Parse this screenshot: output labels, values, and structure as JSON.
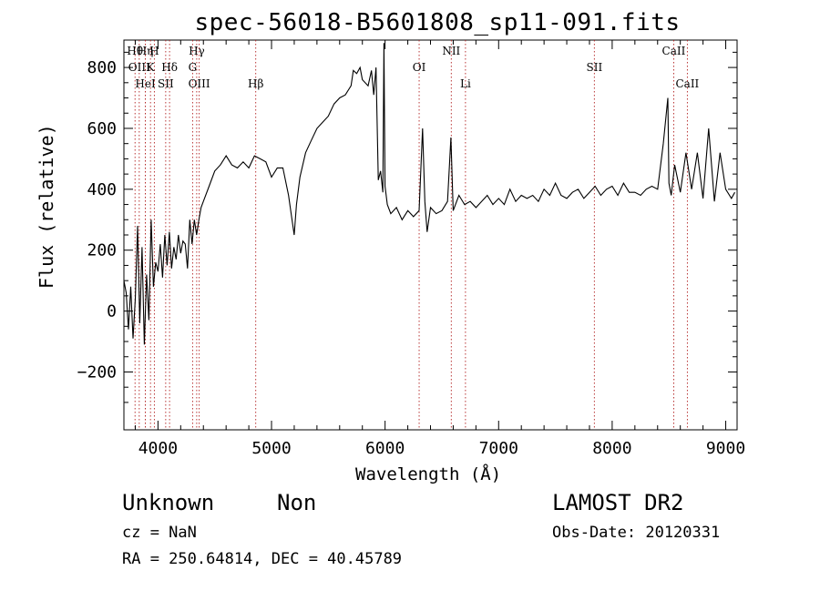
{
  "chart_data": {
    "type": "line",
    "title": "spec-56018-B5601808_sp11-091.fits",
    "xlabel": "Wavelength (Å)",
    "ylabel": "Flux (relative)",
    "xlim": [
      3700,
      9100
    ],
    "ylim": [
      -390,
      890
    ],
    "x_ticks": [
      4000,
      5000,
      6000,
      7000,
      8000,
      9000
    ],
    "y_ticks": [
      -200,
      0,
      200,
      400,
      600,
      800
    ],
    "grid": false,
    "series": [
      {
        "x": [
          3700,
          3720,
          3740,
          3760,
          3780,
          3800,
          3820,
          3840,
          3860,
          3880,
          3900,
          3920,
          3940,
          3960,
          3980,
          4000,
          4020,
          4040,
          4060,
          4080,
          4100,
          4120,
          4140,
          4160,
          4180,
          4200,
          4220,
          4240,
          4260,
          4280,
          4300,
          4320,
          4340,
          4360,
          4380,
          4400,
          4450,
          4500,
          4550,
          4600,
          4650,
          4700,
          4750,
          4800,
          4850,
          4900,
          4950,
          5000,
          5050,
          5100,
          5150,
          5180,
          5200,
          5220,
          5250,
          5300,
          5350,
          5400,
          5450,
          5500,
          5550,
          5600,
          5650,
          5700,
          5720,
          5750,
          5780,
          5800,
          5850,
          5880,
          5900,
          5920,
          5940,
          5960,
          5980,
          5990,
          6000,
          6020,
          6050,
          6100,
          6150,
          6200,
          6250,
          6300,
          6330,
          6350,
          6370,
          6400,
          6450,
          6500,
          6550,
          6580,
          6600,
          6650,
          6700,
          6750,
          6800,
          6850,
          6900,
          6950,
          7000,
          7050,
          7100,
          7150,
          7200,
          7250,
          7300,
          7350,
          7400,
          7450,
          7500,
          7550,
          7600,
          7650,
          7700,
          7750,
          7800,
          7850,
          7900,
          7950,
          8000,
          8050,
          8100,
          8150,
          8200,
          8250,
          8300,
          8350,
          8400,
          8450,
          8490,
          8500,
          8520,
          8550,
          8600,
          8650,
          8700,
          8750,
          8800,
          8850,
          8900,
          8950,
          9000,
          9050,
          9080
        ],
        "y": [
          100,
          60,
          -60,
          80,
          -90,
          40,
          280,
          -40,
          210,
          -110,
          120,
          -30,
          300,
          80,
          160,
          130,
          220,
          110,
          250,
          150,
          260,
          140,
          210,
          170,
          250,
          190,
          230,
          220,
          140,
          300,
          220,
          300,
          250,
          300,
          340,
          360,
          410,
          460,
          480,
          510,
          480,
          470,
          490,
          470,
          510,
          500,
          490,
          440,
          470,
          470,
          380,
          300,
          250,
          350,
          440,
          520,
          560,
          600,
          620,
          640,
          680,
          700,
          710,
          740,
          790,
          780,
          800,
          760,
          740,
          790,
          710,
          800,
          430,
          460,
          390,
          880,
          410,
          350,
          320,
          340,
          300,
          330,
          310,
          330,
          600,
          360,
          260,
          340,
          320,
          330,
          360,
          570,
          330,
          380,
          350,
          360,
          340,
          360,
          380,
          350,
          370,
          350,
          400,
          360,
          380,
          370,
          380,
          360,
          400,
          380,
          420,
          380,
          370,
          390,
          400,
          370,
          390,
          410,
          380,
          400,
          410,
          380,
          420,
          390,
          390,
          380,
          400,
          410,
          400,
          550,
          700,
          420,
          380,
          480,
          390,
          520,
          400,
          520,
          370,
          600,
          360,
          520,
          400,
          370,
          390
        ]
      }
    ],
    "line_markers": [
      {
        "label": "Hθ",
        "wavelength": 3798
      },
      {
        "label": "OIII",
        "wavelength": 3835
      },
      {
        "label": "HeI",
        "wavelength": 3889
      },
      {
        "label": "Hη",
        "wavelength": 3889
      },
      {
        "label": "K",
        "wavelength": 3934
      },
      {
        "label": "SII",
        "wavelength": 4068
      },
      {
        "label": "H",
        "wavelength": 3968
      },
      {
        "label": "Hδ",
        "wavelength": 4102
      },
      {
        "label": "OIII",
        "wavelength": 4363
      },
      {
        "label": "Hγ",
        "wavelength": 4341
      },
      {
        "label": "G",
        "wavelength": 4305
      },
      {
        "label": "Hβ",
        "wavelength": 4861
      },
      {
        "label": "OI",
        "wavelength": 6300
      },
      {
        "label": "NII",
        "wavelength": 6583
      },
      {
        "label": "Li",
        "wavelength": 6708
      },
      {
        "label": "SII",
        "wavelength": 7843
      },
      {
        "label": "CaII",
        "wavelength": 8542
      },
      {
        "label": "CaII",
        "wavelength": 8662
      }
    ]
  },
  "info": {
    "class": "Unknown",
    "subclass": "Non",
    "survey": "LAMOST DR2",
    "cz": "cz = NaN",
    "obs_date": "Obs-Date: 20120331",
    "coords": "RA = 250.64814, DEC =  40.45789"
  }
}
